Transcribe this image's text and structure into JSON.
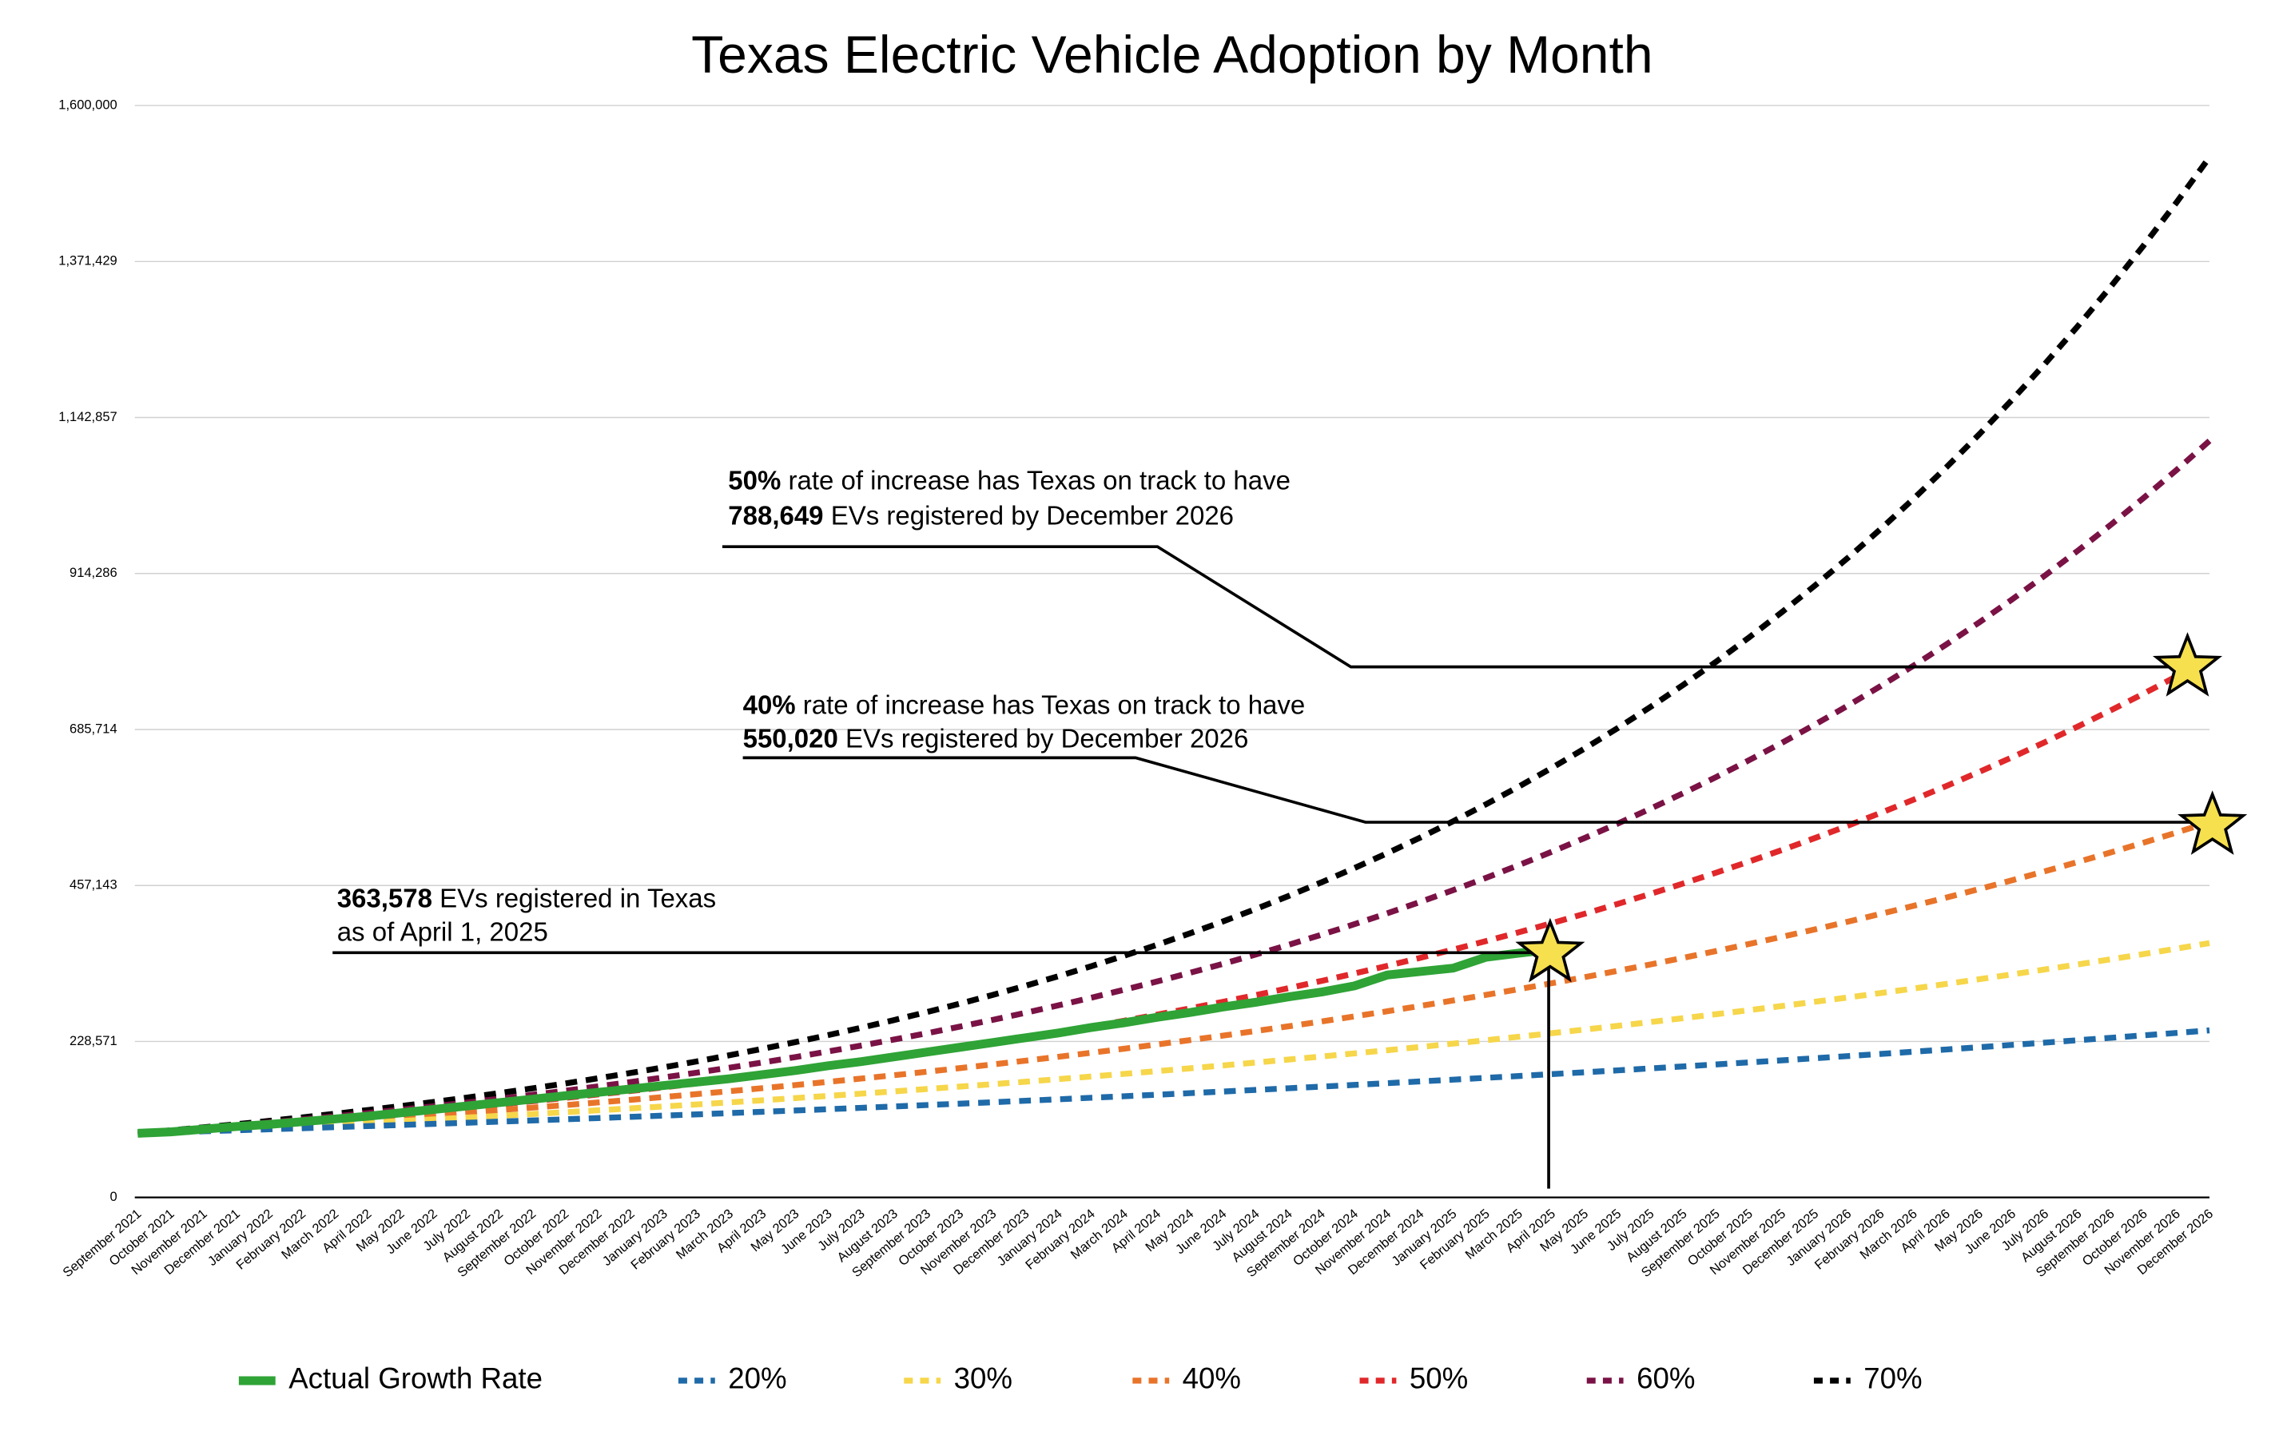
{
  "chart_data": {
    "type": "line",
    "title": "Texas Electric Vehicle Adoption by Month",
    "categories": [
      "September 2021",
      "October 2021",
      "November 2021",
      "December 2021",
      "January 2022",
      "February 2022",
      "March 2022",
      "April 2022",
      "May 2022",
      "June 2022",
      "July 2022",
      "August 2022",
      "September 2022",
      "October 2022",
      "November 2022",
      "December 2022",
      "January 2023",
      "February 2023",
      "March 2023",
      "April 2023",
      "May 2023",
      "June 2023",
      "July 2023",
      "August 2023",
      "September 2023",
      "October 2023",
      "November 2023",
      "December 2023",
      "January 2024",
      "February 2024",
      "March 2024",
      "April 2024",
      "May 2024",
      "June 2024",
      "July 2024",
      "August 2024",
      "September 2024",
      "October 2024",
      "November 2024",
      "December 2024",
      "January 2025",
      "February 2025",
      "March 2025",
      "April 2025",
      "May 2025",
      "June 2025",
      "July 2025",
      "August 2025",
      "September 2025",
      "October 2025",
      "November 2025",
      "December 2025",
      "January 2026",
      "February 2026",
      "March 2026",
      "April 2026",
      "May 2026",
      "June 2026",
      "July 2026",
      "August 2026",
      "September 2026",
      "October 2026",
      "November 2026",
      "December 2026"
    ],
    "ylim": [
      0,
      1600000
    ],
    "yticks": [
      0,
      {
        "value": 228571,
        "label": "228,571"
      },
      {
        "value": 457143,
        "label": "457,143"
      },
      {
        "value": 685714,
        "label": "685,714"
      },
      {
        "value": 914286,
        "label": "914,286"
      },
      {
        "value": 1142857,
        "label": "1,142,857"
      },
      {
        "value": 1371429,
        "label": "1,371,429"
      },
      {
        "value": 1600000,
        "label": "1,600,000"
      }
    ],
    "grid": true,
    "legend": "bottom",
    "series": [
      {
        "name": "Actual Growth Rate",
        "color": "#2fa336",
        "style": "solid",
        "values": [
          94000,
          96000,
          100000,
          104000,
          107000,
          111000,
          115000,
          119000,
          124000,
          129000,
          134000,
          139000,
          144000,
          149000,
          154000,
          159000,
          164000,
          169000,
          174000,
          180000,
          186000,
          193000,
          199000,
          206000,
          213000,
          220000,
          227000,
          234000,
          241000,
          249000,
          256000,
          264000,
          271000,
          279000,
          286000,
          294000,
          301000,
          310000,
          326000,
          331000,
          336000,
          352000,
          358000,
          363578,
          null,
          null,
          null,
          null,
          null,
          null,
          null,
          null,
          null,
          null,
          null,
          null,
          null,
          null,
          null,
          null,
          null,
          null,
          null,
          null
        ]
      },
      {
        "name": "20%",
        "color": "#1f6aa8",
        "style": "dashed",
        "values": [
          94000,
          95400,
          96900,
          98400,
          99900,
          101400,
          103000,
          104600,
          106200,
          107800,
          109400,
          111100,
          112800,
          114500,
          116300,
          118100,
          119900,
          121700,
          123600,
          125500,
          127400,
          129300,
          131300,
          133300,
          135400,
          137400,
          139500,
          141700,
          143800,
          146100,
          148300,
          150500,
          152800,
          155200,
          157600,
          160000,
          162400,
          164900,
          167400,
          170000,
          172600,
          175300,
          177900,
          180700,
          183400,
          186200,
          189100,
          192000,
          194900,
          197900,
          200900,
          204000,
          207100,
          210300,
          213500,
          216800,
          220100,
          223500,
          226900,
          230400,
          233900,
          237500,
          241100,
          244800
        ]
      },
      {
        "name": "30%",
        "color": "#f6d64a",
        "style": "dashed",
        "values": [
          94000,
          96100,
          98200,
          100400,
          102600,
          104900,
          107200,
          109500,
          112000,
          114400,
          117000,
          119600,
          122200,
          124900,
          127700,
          130500,
          133400,
          136300,
          139300,
          142400,
          145600,
          148800,
          152100,
          155400,
          158900,
          162400,
          166000,
          169600,
          173400,
          177200,
          181100,
          185100,
          189200,
          193400,
          197700,
          202100,
          206500,
          211100,
          215700,
          220500,
          225400,
          230400,
          235500,
          240700,
          246000,
          251400,
          257000,
          262700,
          268500,
          274400,
          280500,
          286700,
          293000,
          299500,
          306100,
          312900,
          319800,
          326900,
          334100,
          341500,
          349000,
          356700,
          364600,
          372700
        ]
      },
      {
        "name": "40%",
        "color": "#e8742a",
        "style": "dashed",
        "values": [
          94000,
          96700,
          99400,
          102200,
          105200,
          108100,
          111200,
          114400,
          117600,
          121000,
          124400,
          128000,
          131600,
          135300,
          139200,
          143100,
          147200,
          151400,
          155700,
          160100,
          164700,
          169400,
          174200,
          179100,
          184200,
          189500,
          194900,
          200400,
          206100,
          212000,
          218000,
          224200,
          230600,
          237100,
          243900,
          250800,
          257900,
          265300,
          272800,
          280600,
          288600,
          296800,
          305200,
          313900,
          322800,
          332000,
          341400,
          351100,
          361100,
          371400,
          381900,
          392800,
          404000,
          415500,
          427300,
          439400,
          451900,
          464800,
          478000,
          491600,
          505600,
          519900,
          534700,
          550020
        ]
      },
      {
        "name": "50%",
        "color": "#e0282b",
        "style": "dashed",
        "values": [
          94000,
          97200,
          100600,
          104000,
          107600,
          111300,
          115100,
          119100,
          123200,
          127400,
          131800,
          136300,
          141000,
          145800,
          150900,
          156000,
          161400,
          167000,
          172700,
          178600,
          184800,
          191100,
          197700,
          204500,
          211500,
          218800,
          226300,
          234100,
          242100,
          250400,
          259000,
          267900,
          277100,
          286700,
          296500,
          306700,
          317300,
          328200,
          339400,
          351100,
          363200,
          375600,
          388600,
          401900,
          415700,
          430000,
          444800,
          460100,
          475900,
          492200,
          509100,
          526600,
          544700,
          563500,
          582800,
          602900,
          623600,
          645000,
          667200,
          690100,
          713800,
          738300,
          763700,
          788649
        ]
      },
      {
        "name": "60%",
        "color": "#7a1245",
        "style": "dashed",
        "values": [
          94000,
          97800,
          101700,
          105700,
          109900,
          114300,
          118900,
          123700,
          128600,
          133700,
          139100,
          144600,
          150400,
          156400,
          162700,
          169200,
          175900,
          182900,
          190200,
          197800,
          205700,
          214000,
          222500,
          231400,
          240600,
          250300,
          260200,
          270600,
          281500,
          292700,
          304400,
          316500,
          329200,
          342300,
          356000,
          370200,
          385000,
          400400,
          416400,
          433000,
          450300,
          468300,
          487000,
          506500,
          526700,
          547700,
          569600,
          592400,
          616000,
          640700,
          666200,
          692900,
          720500,
          749300,
          779200,
          810400,
          842700,
          876400,
          911400,
          947800,
          985700,
          1025100,
          1066000,
          1108600
        ]
      },
      {
        "name": "70%",
        "color": "#000000",
        "style": "dashed",
        "values": [
          94000,
          98300,
          102700,
          107300,
          112200,
          117300,
          122600,
          128100,
          133900,
          139900,
          146300,
          152900,
          159800,
          167000,
          174600,
          182500,
          190700,
          199300,
          208400,
          217800,
          227600,
          237900,
          248700,
          259900,
          271700,
          283900,
          296800,
          310200,
          324200,
          338900,
          354200,
          370200,
          387000,
          404400,
          422700,
          441800,
          461800,
          482700,
          504500,
          527300,
          551200,
          576100,
          602100,
          629400,
          657800,
          687600,
          718700,
          751100,
          785100,
          820600,
          857700,
          896500,
          937000,
          979400,
          1023700,
          1069900,
          1118300,
          1168900,
          1221700,
          1276900,
          1334700,
          1395000,
          1458100,
          1524100
        ]
      }
    ],
    "annotations": [
      {
        "bold1": "50%",
        "text1": " rate of increase has Texas on track to have",
        "bold2": "788,649",
        "text2": " EVs registered by December 2026"
      },
      {
        "bold1": "40%",
        "text1": " rate of increase has Texas on track to have",
        "bold2": "550,020",
        "text2": " EVs registered by December 2026"
      },
      {
        "bold1": "363,578",
        "text1": " EVs registered in Texas",
        "text2": "as of April 1, 2025"
      }
    ]
  }
}
